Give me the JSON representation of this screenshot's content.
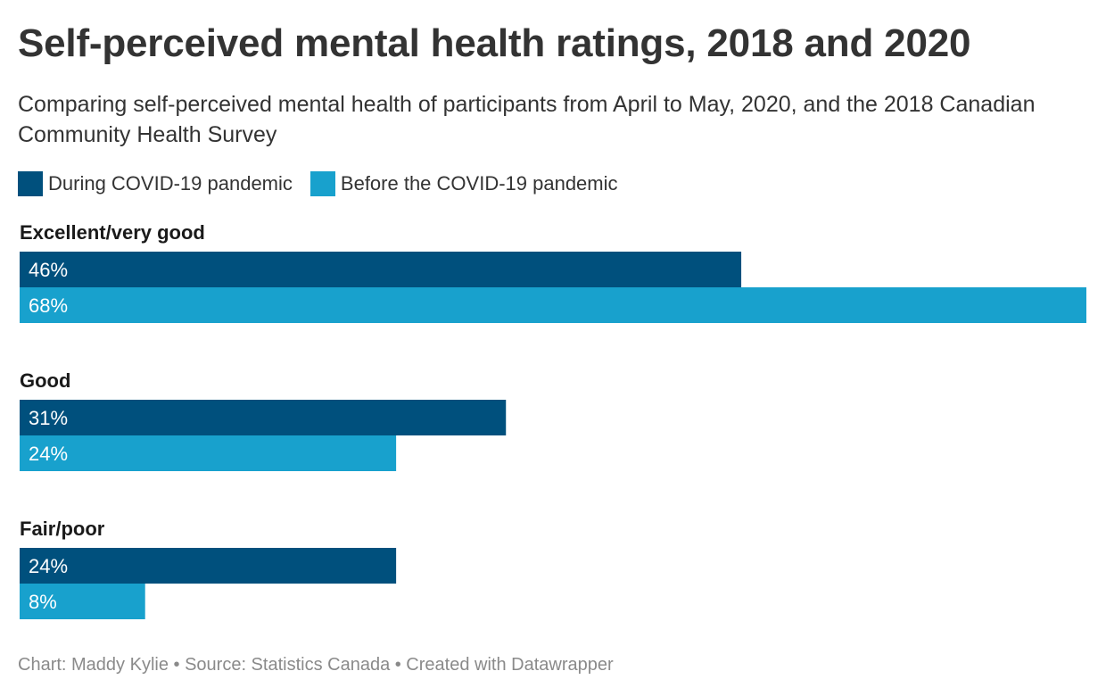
{
  "title": "Self-perceived mental health ratings, 2018 and 2020",
  "subtitle": "Comparing self-perceived mental health of participants from April to May, 2020, and the 2018 Canadian Community Health Survey",
  "footer": "Chart: Maddy Kylie • Source: Statistics Canada • Created with Datawrapper",
  "colors": {
    "during": "#00507d",
    "before": "#18a1cd",
    "label_text": "#ffffff",
    "category_text": "#1a1a1a"
  },
  "chart_data": {
    "type": "bar",
    "orientation": "horizontal",
    "categories": [
      "Excellent/very good",
      "Good",
      "Fair/poor"
    ],
    "series": [
      {
        "name": "During COVID-19 pandemic",
        "values": [
          46,
          31,
          24
        ],
        "labels": [
          "46%",
          "31%",
          "24%"
        ]
      },
      {
        "name": "Before the COVID-19 pandemic",
        "values": [
          68,
          24,
          8
        ],
        "labels": [
          "68%",
          "24%",
          "8%"
        ]
      }
    ],
    "xlim": [
      0,
      68
    ],
    "grid": false,
    "legend_position": "top-left"
  }
}
